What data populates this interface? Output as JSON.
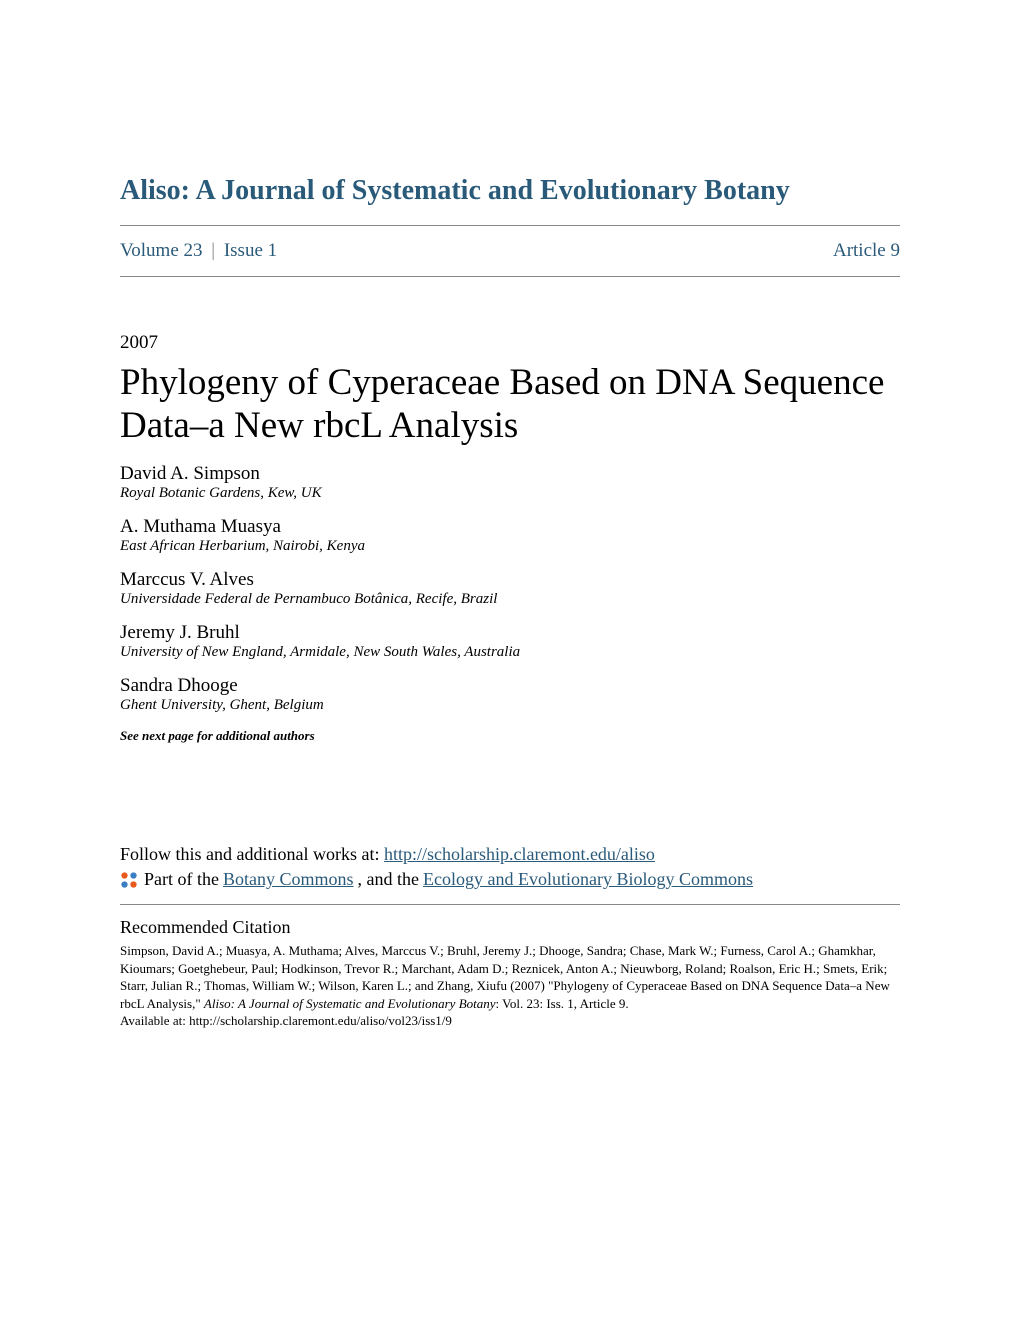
{
  "journal": {
    "title": "Aliso: A Journal of Systematic and Evolutionary Botany",
    "title_color": "#2a5a7a"
  },
  "navigation": {
    "volume_label": "Volume 23",
    "issue_label": "Issue 1",
    "article_label": "Article 9"
  },
  "article": {
    "year": "2007",
    "title": "Phylogeny of Cyperaceae Based on DNA Sequence Data–a New rbcL Analysis"
  },
  "authors": [
    {
      "name": "David A. Simpson",
      "affiliation": "Royal Botanic Gardens, Kew, UK"
    },
    {
      "name": "A. Muthama Muasya",
      "affiliation": "East African Herbarium, Nairobi, Kenya"
    },
    {
      "name": "Marccus V. Alves",
      "affiliation": "Universidade Federal de Pernambuco Botânica, Recife, Brazil"
    },
    {
      "name": "Jeremy J. Bruhl",
      "affiliation": "University of New England, Armidale, New South Wales, Australia"
    },
    {
      "name": "Sandra Dhooge",
      "affiliation": "Ghent University, Ghent, Belgium"
    }
  ],
  "see_next": "See next page for additional authors",
  "follow": {
    "prefix": "Follow this and additional works at: ",
    "url": "http://scholarship.claremont.edu/aliso",
    "part_prefix": "Part of the ",
    "commons1": "Botany Commons",
    "and_the": ", and the ",
    "commons2": "Ecology and Evolutionary Biology Commons"
  },
  "citation": {
    "heading": "Recommended Citation",
    "text_pre": "Simpson, David A.; Muasya, A. Muthama; Alves, Marccus V.; Bruhl, Jeremy J.; Dhooge, Sandra; Chase, Mark W.; Furness, Carol A.; Ghamkhar, Kioumars; Goetghebeur, Paul; Hodkinson, Trevor R.; Marchant, Adam D.; Reznicek, Anton A.; Nieuwborg, Roland; Roalson, Eric H.; Smets, Erik; Starr, Julian R.; Thomas, William W.; Wilson, Karen L.; and Zhang, Xiufu (2007) \"Phylogeny of Cyperaceae Based on DNA Sequence Data–a New rbcL Analysis,\" ",
    "journal_italic": "Aliso: A Journal of Systematic and Evolutionary Botany",
    "text_post": ": Vol. 23: Iss. 1, Article 9.",
    "available": "Available at: http://scholarship.claremont.edu/aliso/vol23/iss1/9"
  },
  "colors": {
    "link_color": "#2a5a7a",
    "text_color": "#000000",
    "divider_color": "#888888",
    "icon_orange": "#e8591c",
    "icon_blue": "#3a7fc4"
  }
}
